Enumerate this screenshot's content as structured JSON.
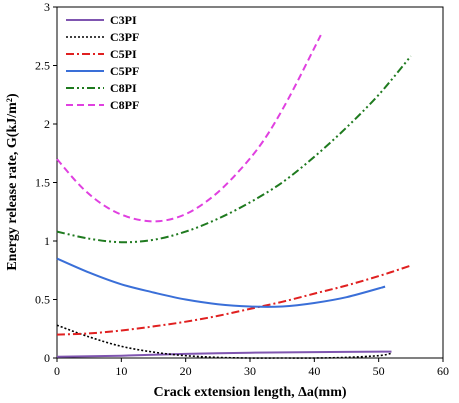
{
  "chart_data": {
    "type": "line",
    "xlabel": "Crack extension length, Δa(mm)",
    "ylabel": "Energy release rate, G(kJ/m²)",
    "xlim": [
      0,
      60
    ],
    "ylim": [
      0,
      3
    ],
    "xticks": [
      "0",
      "10",
      "20",
      "30",
      "40",
      "50",
      "60"
    ],
    "yticks": [
      "0",
      "0.5",
      "1",
      "1.5",
      "2",
      "2.5",
      "3"
    ],
    "grid": false,
    "legend_position": "top-left",
    "series": [
      {
        "name": "C3PI",
        "color": "#7f55b0",
        "dash": "solid",
        "x": [
          0,
          10,
          20,
          30,
          40,
          52
        ],
        "y": [
          0.01,
          0.02,
          0.035,
          0.045,
          0.05,
          0.055
        ]
      },
      {
        "name": "C3PF",
        "color": "#000000",
        "dash": "dotted",
        "x": [
          0,
          5,
          10,
          15,
          20,
          25,
          30,
          35,
          40,
          45,
          50,
          52
        ],
        "y": [
          0.28,
          0.18,
          0.1,
          0.05,
          0.02,
          0.005,
          0.0,
          0.0,
          0.0,
          0.005,
          0.02,
          0.04
        ]
      },
      {
        "name": "C5PI",
        "color": "#e02020",
        "dash": "dashdot",
        "x": [
          0,
          5,
          10,
          15,
          20,
          25,
          30,
          35,
          40,
          45,
          50,
          55
        ],
        "y": [
          0.2,
          0.21,
          0.235,
          0.27,
          0.31,
          0.36,
          0.42,
          0.48,
          0.55,
          0.62,
          0.7,
          0.79
        ]
      },
      {
        "name": "C5PF",
        "color": "#3a6fd8",
        "dash": "solid",
        "x": [
          0,
          5,
          10,
          15,
          20,
          25,
          30,
          35,
          40,
          45,
          51
        ],
        "y": [
          0.85,
          0.73,
          0.63,
          0.56,
          0.5,
          0.46,
          0.44,
          0.44,
          0.47,
          0.52,
          0.61
        ]
      },
      {
        "name": "C8PI",
        "color": "#1f7a1f",
        "dash": "dashdotdot",
        "x": [
          0,
          5,
          10,
          15,
          20,
          25,
          30,
          35,
          40,
          45,
          50,
          55
        ],
        "y": [
          1.08,
          1.02,
          0.99,
          1.01,
          1.08,
          1.19,
          1.33,
          1.5,
          1.72,
          1.97,
          2.25,
          2.58
        ]
      },
      {
        "name": "C8PF",
        "color": "#e040e0",
        "dash": "dashed",
        "x": [
          0,
          4,
          8,
          12,
          16,
          20,
          24,
          28,
          32,
          36,
          41
        ],
        "y": [
          1.7,
          1.45,
          1.28,
          1.19,
          1.17,
          1.23,
          1.37,
          1.58,
          1.85,
          2.22,
          2.76
        ]
      }
    ]
  }
}
